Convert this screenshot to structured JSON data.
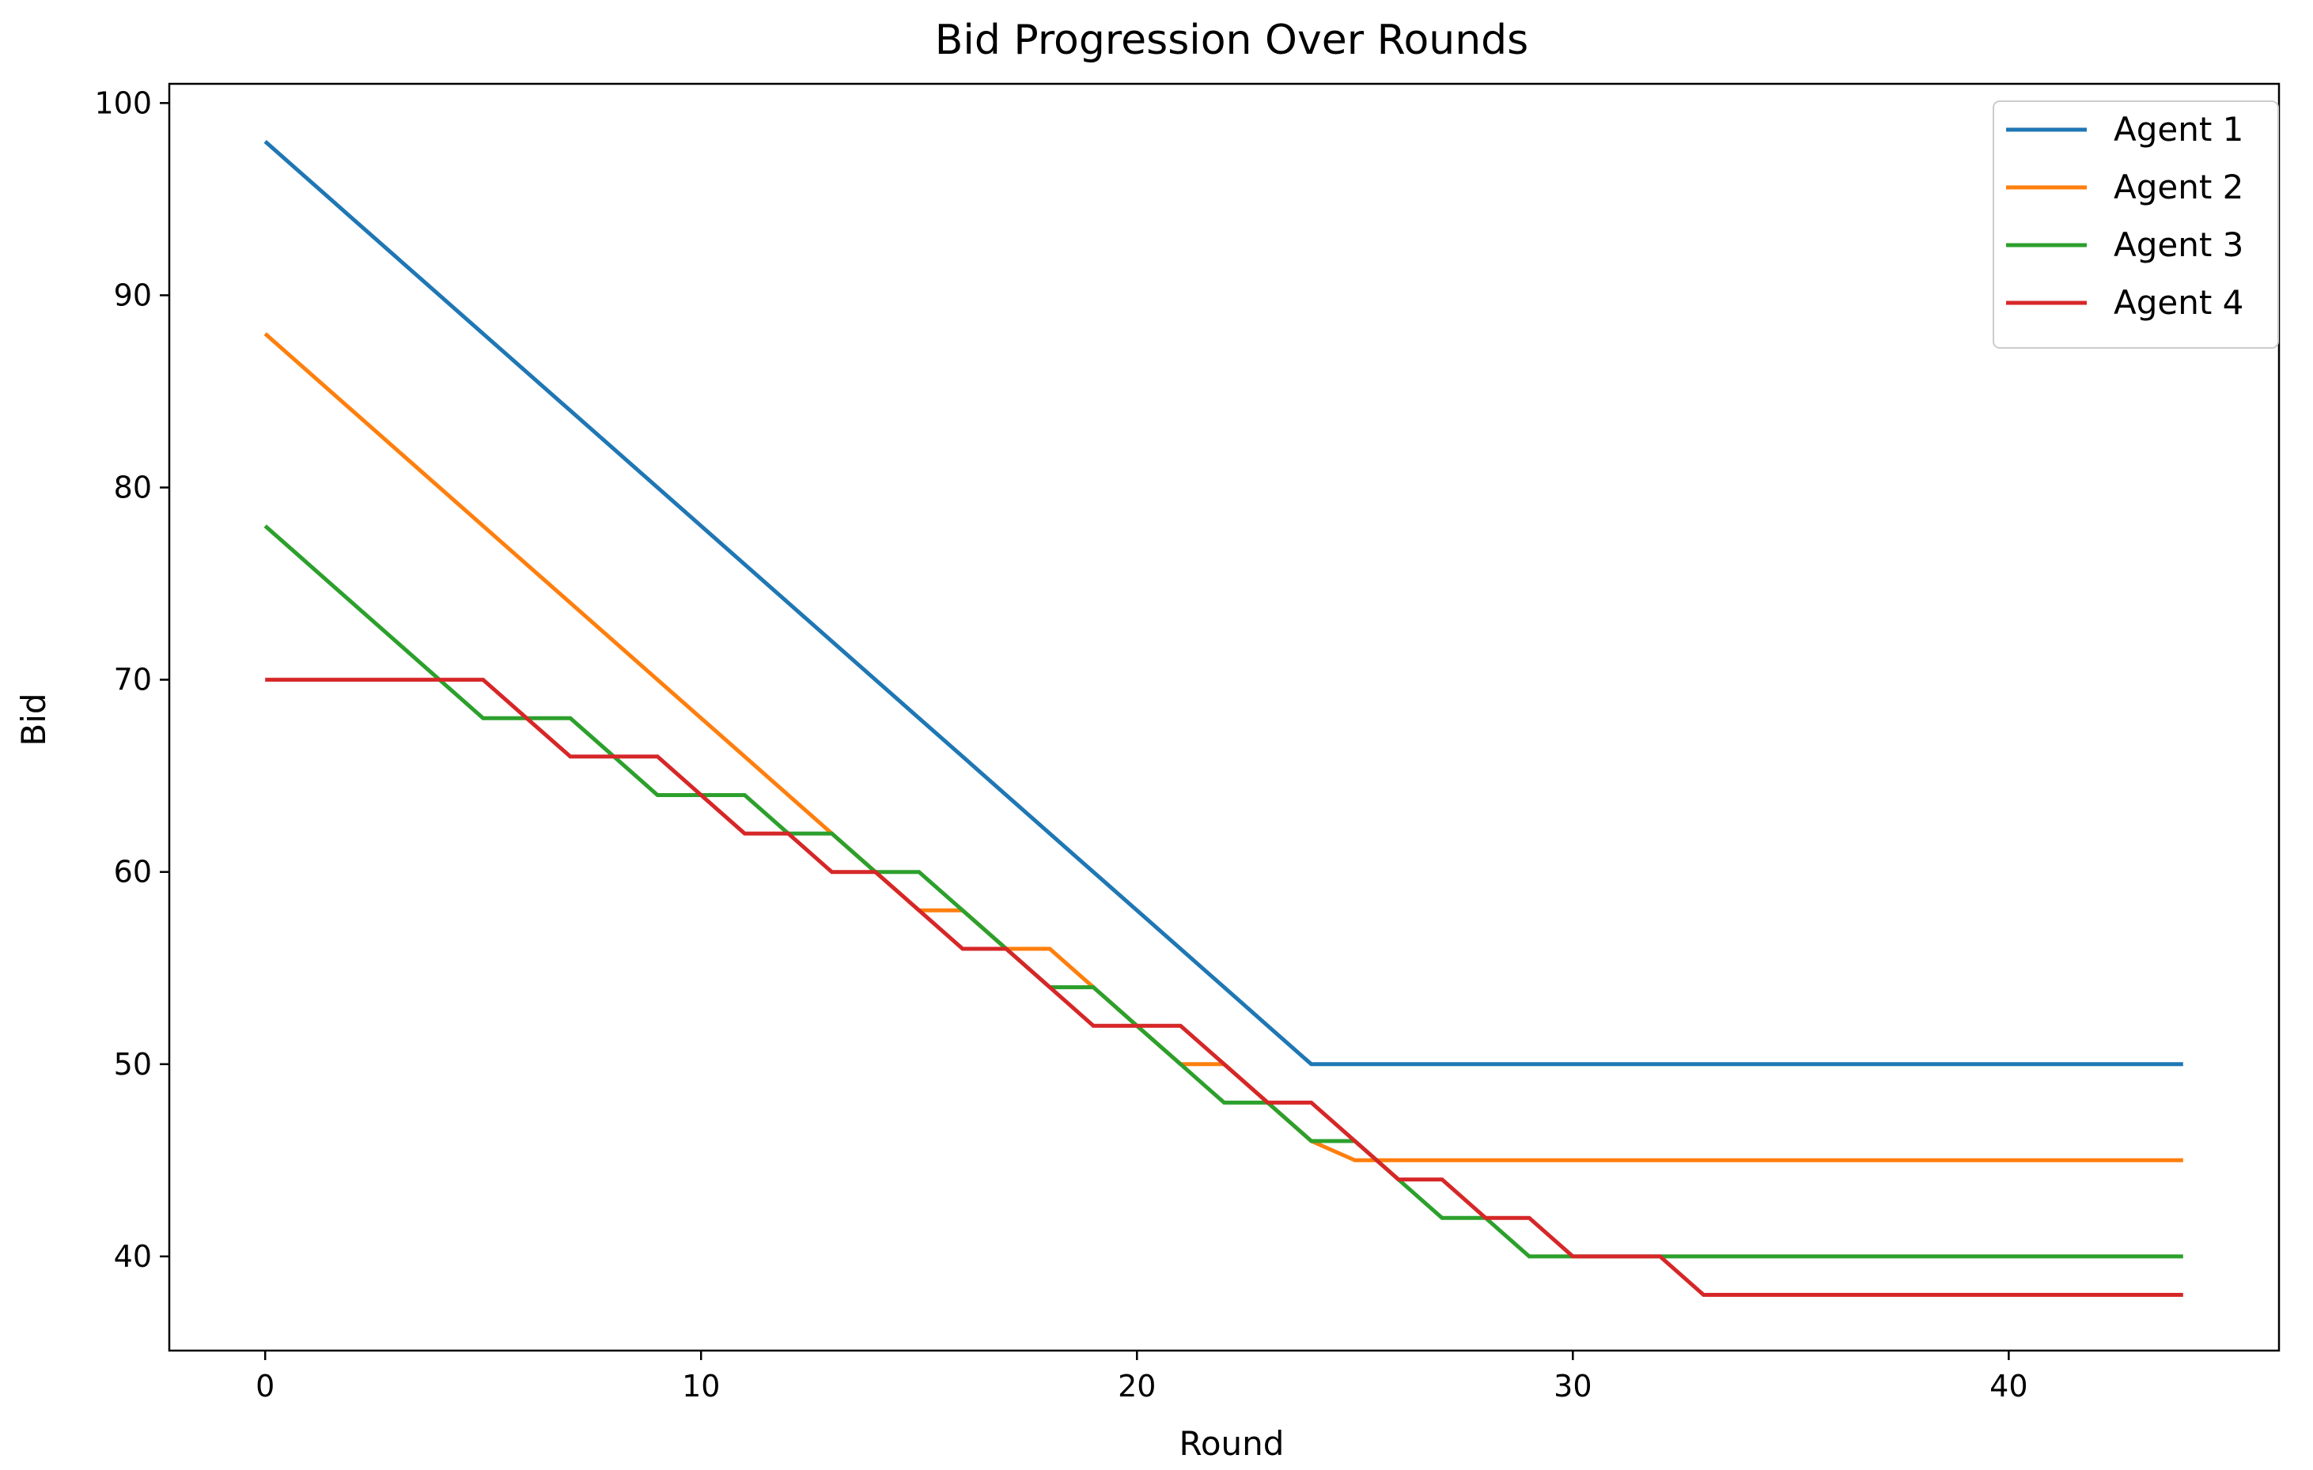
{
  "chart_data": {
    "type": "line",
    "title": "Bid Progression Over Rounds",
    "xlabel": "Round",
    "ylabel": "Bid",
    "xlim": [
      -2.2,
      46.2
    ],
    "ylim": [
      35.1,
      101
    ],
    "xticks": [
      0,
      10,
      20,
      30,
      40
    ],
    "yticks": [
      40,
      50,
      60,
      70,
      80,
      90,
      100
    ],
    "grid": false,
    "legend_position": "top-right",
    "x": [
      0,
      1,
      2,
      3,
      4,
      5,
      6,
      7,
      8,
      9,
      10,
      11,
      12,
      13,
      14,
      15,
      16,
      17,
      18,
      19,
      20,
      21,
      22,
      23,
      24,
      25,
      26,
      27,
      28,
      29,
      30,
      31,
      32,
      33,
      34,
      35,
      36,
      37,
      38,
      39,
      40,
      41,
      42,
      43,
      44
    ],
    "series": [
      {
        "name": "Agent 1",
        "color": "#1f77b4",
        "values": [
          98,
          96,
          94,
          92,
          90,
          88,
          86,
          84,
          82,
          80,
          78,
          76,
          74,
          72,
          70,
          68,
          66,
          64,
          62,
          60,
          58,
          56,
          54,
          52,
          50,
          50,
          50,
          50,
          50,
          50,
          50,
          50,
          50,
          50,
          50,
          50,
          50,
          50,
          50,
          50,
          50,
          50,
          50,
          50,
          50
        ]
      },
      {
        "name": "Agent 2",
        "color": "#ff7f0e",
        "values": [
          88,
          86,
          84,
          82,
          80,
          78,
          76,
          74,
          72,
          70,
          68,
          66,
          64,
          62,
          60,
          58,
          58,
          56,
          56,
          54,
          52,
          50,
          50,
          48,
          46,
          45,
          45,
          45,
          45,
          45,
          45,
          45,
          45,
          45,
          45,
          45,
          45,
          45,
          45,
          45,
          45,
          45,
          45,
          45,
          45
        ]
      },
      {
        "name": "Agent 3",
        "color": "#2ca02c",
        "values": [
          78,
          76,
          74,
          72,
          70,
          68,
          68,
          68,
          66,
          64,
          64,
          64,
          62,
          62,
          60,
          60,
          58,
          56,
          54,
          54,
          52,
          50,
          48,
          48,
          46,
          46,
          44,
          42,
          42,
          40,
          40,
          40,
          40,
          40,
          40,
          40,
          40,
          40,
          40,
          40,
          40,
          40,
          40,
          40,
          40
        ]
      },
      {
        "name": "Agent 4",
        "color": "#d62728",
        "values": [
          70,
          70,
          70,
          70,
          70,
          70,
          68,
          66,
          66,
          66,
          64,
          62,
          62,
          60,
          60,
          58,
          56,
          56,
          54,
          52,
          52,
          52,
          50,
          48,
          48,
          46,
          44,
          44,
          42,
          42,
          40,
          40,
          40,
          38,
          38,
          38,
          38,
          38,
          38,
          38,
          38,
          38,
          38,
          38,
          38
        ]
      }
    ]
  }
}
